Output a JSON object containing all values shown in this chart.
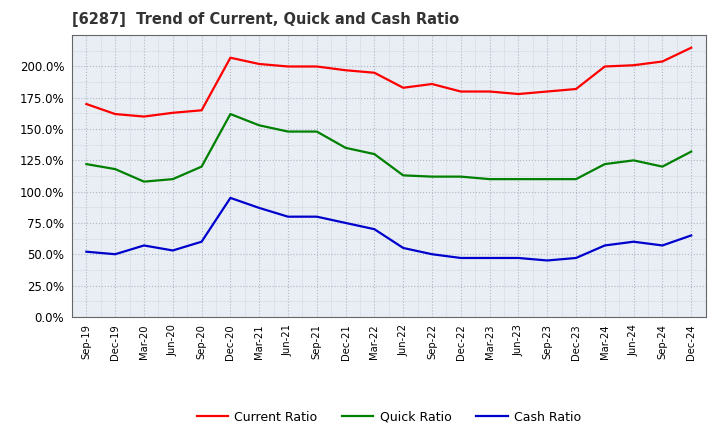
{
  "title": "[6287]  Trend of Current, Quick and Cash Ratio",
  "x_labels": [
    "Sep-19",
    "Dec-19",
    "Mar-20",
    "Jun-20",
    "Sep-20",
    "Dec-20",
    "Mar-21",
    "Jun-21",
    "Sep-21",
    "Dec-21",
    "Mar-22",
    "Jun-22",
    "Sep-22",
    "Dec-22",
    "Mar-23",
    "Jun-23",
    "Sep-23",
    "Dec-23",
    "Mar-24",
    "Jun-24",
    "Sep-24",
    "Dec-24"
  ],
  "current_ratio": [
    170.0,
    162.0,
    160.0,
    163.0,
    165.0,
    207.0,
    202.0,
    200.0,
    200.0,
    197.0,
    195.0,
    183.0,
    186.0,
    180.0,
    180.0,
    178.0,
    180.0,
    182.0,
    200.0,
    201.0,
    204.0,
    215.0
  ],
  "quick_ratio": [
    122.0,
    118.0,
    108.0,
    110.0,
    120.0,
    162.0,
    153.0,
    148.0,
    148.0,
    135.0,
    130.0,
    113.0,
    112.0,
    112.0,
    110.0,
    110.0,
    110.0,
    110.0,
    122.0,
    125.0,
    120.0,
    132.0
  ],
  "cash_ratio": [
    52.0,
    50.0,
    57.0,
    53.0,
    60.0,
    95.0,
    87.0,
    80.0,
    80.0,
    75.0,
    70.0,
    55.0,
    50.0,
    47.0,
    47.0,
    47.0,
    45.0,
    47.0,
    57.0,
    60.0,
    57.0,
    65.0
  ],
  "current_color": "#FF0000",
  "quick_color": "#008000",
  "cash_color": "#0000CD",
  "bg_color": "#FFFFFF",
  "plot_bg_color": "#E8EEF4",
  "grid_color": "#B0B8C8",
  "ylim": [
    0,
    225
  ],
  "yticks": [
    0.0,
    25.0,
    50.0,
    75.0,
    100.0,
    125.0,
    150.0,
    175.0,
    200.0
  ],
  "line_width": 1.6
}
